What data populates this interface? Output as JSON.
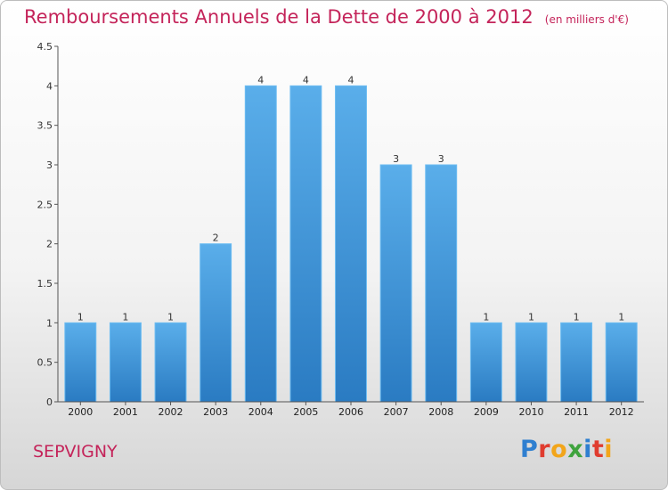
{
  "title": "Remboursements Annuels de la Dette de 2000 à 2012",
  "unit_note": "(en milliers d'€)",
  "commune": "SEPVIGNY",
  "logo": {
    "letters": [
      "P",
      "r",
      "o",
      "x",
      "i",
      "t",
      "i"
    ],
    "colors": [
      "#2f7fd0",
      "#e03c2f",
      "#f2a51a",
      "#3ea33d",
      "#2f7fd0",
      "#e03c2f",
      "#f2a51a"
    ]
  },
  "colors": {
    "bar_top": "#5aaeea",
    "bar_bottom": "#2a7bc2",
    "bar_edge": "#6cbcf2",
    "axis": "#555555",
    "grid": "#e6e6e6",
    "title": "#c4245a"
  },
  "chart_data": {
    "type": "bar",
    "title": "Remboursements Annuels de la Dette de 2000 à 2012",
    "xlabel": "",
    "ylabel": "",
    "categories": [
      "2000",
      "2001",
      "2002",
      "2003",
      "2004",
      "2005",
      "2006",
      "2007",
      "2008",
      "2009",
      "2010",
      "2011",
      "2012"
    ],
    "values": [
      1,
      1,
      1,
      2,
      4,
      4,
      4,
      3,
      3,
      1,
      1,
      1,
      1
    ],
    "value_labels": [
      "1",
      "1",
      "1",
      "2",
      "4",
      "4",
      "4",
      "3",
      "3",
      "1",
      "1",
      "1",
      "1"
    ],
    "ylim": [
      0,
      4.5
    ],
    "yticks": [
      0,
      0.5,
      1,
      1.5,
      2,
      2.5,
      3,
      3.5,
      4,
      4.5
    ],
    "ytick_labels": [
      "0",
      "0.5",
      "1",
      "1.5",
      "2",
      "2.5",
      "3",
      "3.5",
      "4",
      "4.5"
    ],
    "grid": false,
    "legend": "none"
  }
}
